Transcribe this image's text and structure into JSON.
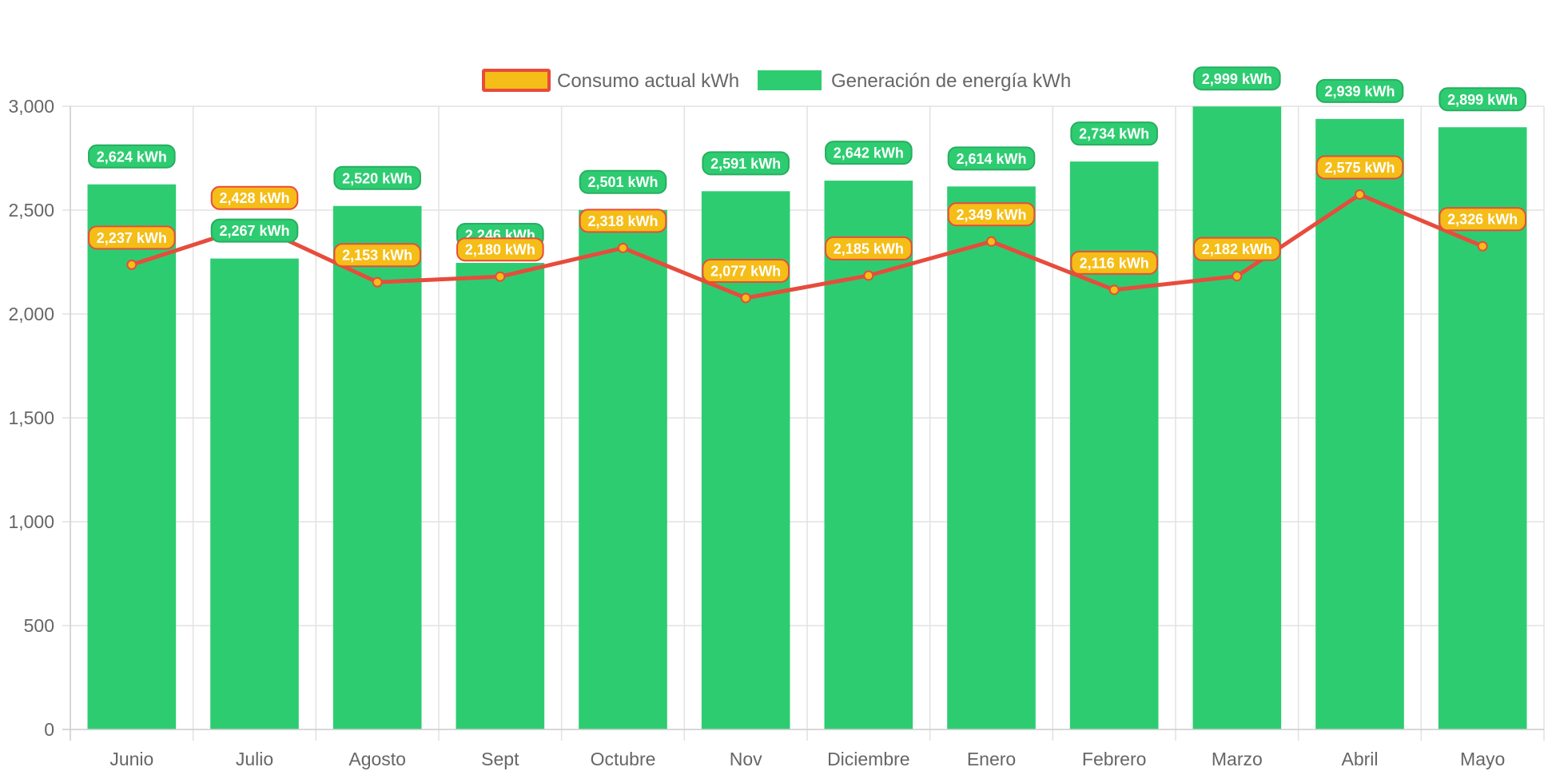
{
  "chart_data": {
    "type": "bar",
    "categories": [
      "Junio",
      "Julio",
      "Agosto",
      "Sept",
      "Octubre",
      "Nov",
      "Diciembre",
      "Enero",
      "Febrero",
      "Marzo",
      "Abril",
      "Mayo"
    ],
    "series": [
      {
        "name": "Consumo actual kWh",
        "type": "line",
        "values": [
          2237,
          2428,
          2153,
          2180,
          2318,
          2077,
          2185,
          2349,
          2116,
          2182,
          2575,
          2326
        ],
        "labels": [
          "2,237 kWh",
          "2,428 kWh",
          "2,153 kWh",
          "2,180 kWh",
          "2,318 kWh",
          "2,077 kWh",
          "2,185 kWh",
          "2,349 kWh",
          "2,116 kWh",
          "2,182 kWh",
          "2,575 kWh",
          "2,326 kWh"
        ],
        "color": "#f5bd17",
        "border_color": "#e74c3c"
      },
      {
        "name": "Generación de energía kWh",
        "type": "bar",
        "values": [
          2624,
          2267,
          2520,
          2246,
          2501,
          2591,
          2642,
          2614,
          2734,
          2999,
          2939,
          2899
        ],
        "labels": [
          "2,624 kWh",
          "2,267 kWh",
          "2,520 kWh",
          "2,246 kWh",
          "2,501 kWh",
          "2,591 kWh",
          "2,642 kWh",
          "2,614 kWh",
          "2,734 kWh",
          "2,999 kWh",
          "2,939 kWh",
          "2,899 kWh"
        ],
        "color": "#2ecc71",
        "border_color": "#27ae60"
      }
    ],
    "ylim": [
      0,
      3000
    ],
    "yticks": [
      0,
      500,
      1000,
      1500,
      2000,
      2500,
      3000
    ],
    "ytick_labels": [
      "0",
      "500",
      "1,000",
      "1,500",
      "2,000",
      "2,500",
      "3,000"
    ],
    "grid": true,
    "legend_position": "top"
  }
}
